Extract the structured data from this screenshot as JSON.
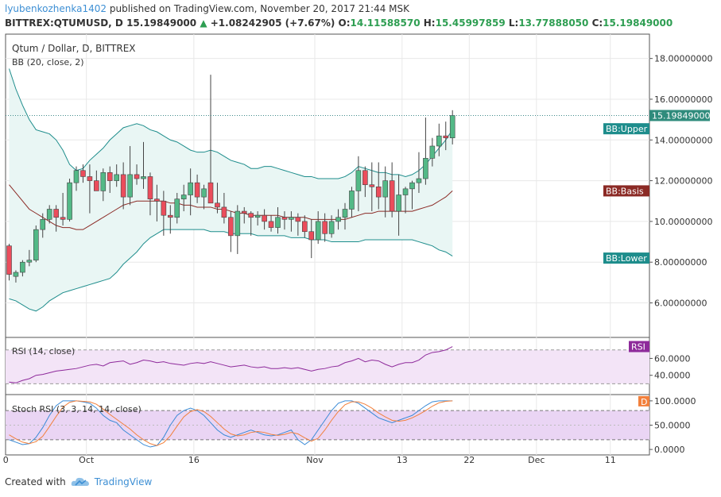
{
  "header": {
    "user": "lyubenkozhenka1402",
    "published": "published on TradingView.com, November 20, 2017 21:44 MSK",
    "symbol": "BITTREX:QTUMUSD, D",
    "last": "15.19849000",
    "change": "+1.08242905 (+7.67%)",
    "o_label": "O:",
    "o": "14.11588570",
    "h_label": "H:",
    "h": "15.45997859",
    "l_label": "L:",
    "l": "13.77888050",
    "c_label": "C:",
    "c": "15.19849000"
  },
  "chart_data": [
    {
      "type": "candlestick",
      "title": "Qtum / Dollar, D, BITTREX",
      "subtitle": "BB (20, close, 2)",
      "ylim": [
        4.5,
        19
      ],
      "yticks": [
        "6.00000000",
        "8.00000000",
        "10.00000000",
        "12.00000000",
        "14.00000000",
        "16.00000000",
        "18.00000000"
      ],
      "x_ticks": [
        "0",
        "Oct",
        "16",
        "Nov",
        "13",
        "22",
        "Dec",
        "11"
      ],
      "last_price_label": "15.19849000",
      "last_price": 15.2,
      "bb_labels": {
        "upper": "BB:Upper",
        "basis": "BB:Basis",
        "lower": "BB:Lower"
      },
      "colors": {
        "up": "#53b987",
        "down": "#eb4d5c",
        "upper": "#1e8d8c",
        "basis": "#8b2a25",
        "lower": "#1e8d8c",
        "fill": "#e9f6f4"
      },
      "candles": [
        [
          8.8,
          8.9,
          7.1,
          7.4
        ],
        [
          7.3,
          7.6,
          7.0,
          7.5
        ],
        [
          7.5,
          8.1,
          7.3,
          8.0
        ],
        [
          8.0,
          8.6,
          7.8,
          8.1
        ],
        [
          8.1,
          9.8,
          8.0,
          9.6
        ],
        [
          9.6,
          10.4,
          9.2,
          10.1
        ],
        [
          10.1,
          10.8,
          9.9,
          10.6
        ],
        [
          10.6,
          10.8,
          9.5,
          10.2
        ],
        [
          10.2,
          11.4,
          9.8,
          10.1
        ],
        [
          10.1,
          12.1,
          10.0,
          11.9
        ],
        [
          11.9,
          12.7,
          11.5,
          12.5
        ],
        [
          12.5,
          12.8,
          11.9,
          12.2
        ],
        [
          12.2,
          12.8,
          10.4,
          12.0
        ],
        [
          12.0,
          12.5,
          11.6,
          11.5
        ],
        [
          11.5,
          12.6,
          11.0,
          12.4
        ],
        [
          12.4,
          12.7,
          11.4,
          12.0
        ],
        [
          12.0,
          12.8,
          11.7,
          12.3
        ],
        [
          12.3,
          12.9,
          10.6,
          11.2
        ],
        [
          11.2,
          13.7,
          10.8,
          12.3
        ],
        [
          12.3,
          12.8,
          11.8,
          12.1
        ],
        [
          12.1,
          13.9,
          11.6,
          12.2
        ],
        [
          12.2,
          12.4,
          10.3,
          11.1
        ],
        [
          11.1,
          11.8,
          10.0,
          11.0
        ],
        [
          11.0,
          11.5,
          9.3,
          10.3
        ],
        [
          10.3,
          10.8,
          9.4,
          10.2
        ],
        [
          10.2,
          11.4,
          9.9,
          11.1
        ],
        [
          11.1,
          11.8,
          10.5,
          11.3
        ],
        [
          11.3,
          12.6,
          10.3,
          11.9
        ],
        [
          11.9,
          12.3,
          10.9,
          11.2
        ],
        [
          11.2,
          11.8,
          10.6,
          11.6
        ],
        [
          11.9,
          17.2,
          11.0,
          10.9
        ],
        [
          10.9,
          11.9,
          10.4,
          10.7
        ],
        [
          10.7,
          11.4,
          9.9,
          10.2
        ],
        [
          10.2,
          10.5,
          8.5,
          9.3
        ],
        [
          9.3,
          10.8,
          8.4,
          10.5
        ],
        [
          10.5,
          10.7,
          9.9,
          10.4
        ],
        [
          10.4,
          10.5,
          9.3,
          10.2
        ],
        [
          10.2,
          10.5,
          9.8,
          10.3
        ],
        [
          10.3,
          10.6,
          9.6,
          10.0
        ],
        [
          10.0,
          10.3,
          9.5,
          9.7
        ],
        [
          9.7,
          10.7,
          9.4,
          10.2
        ],
        [
          10.2,
          10.5,
          9.6,
          10.1
        ],
        [
          10.1,
          10.5,
          9.5,
          10.2
        ],
        [
          10.2,
          10.4,
          9.3,
          10.0
        ],
        [
          10.0,
          10.3,
          9.2,
          9.5
        ],
        [
          9.5,
          10.1,
          8.2,
          9.1
        ],
        [
          9.1,
          10.5,
          8.9,
          10.0
        ],
        [
          10.0,
          10.4,
          9.0,
          9.4
        ],
        [
          9.4,
          10.3,
          9.2,
          10.0
        ],
        [
          10.0,
          10.6,
          9.6,
          10.2
        ],
        [
          10.2,
          10.9,
          9.6,
          10.6
        ],
        [
          10.6,
          11.7,
          10.2,
          11.5
        ],
        [
          11.5,
          13.2,
          10.5,
          12.5
        ],
        [
          12.5,
          12.7,
          11.2,
          11.8
        ],
        [
          11.8,
          12.9,
          10.5,
          11.7
        ],
        [
          11.7,
          12.9,
          10.6,
          11.2
        ],
        [
          11.2,
          12.7,
          10.2,
          12.0
        ],
        [
          12.0,
          12.9,
          10.2,
          10.5
        ],
        [
          10.5,
          12.3,
          9.3,
          11.3
        ],
        [
          11.3,
          11.7,
          10.4,
          11.6
        ],
        [
          11.6,
          12.0,
          10.6,
          11.9
        ],
        [
          11.9,
          13.4,
          11.4,
          12.1
        ],
        [
          12.1,
          15.1,
          11.8,
          13.1
        ],
        [
          13.1,
          14.1,
          12.7,
          13.7
        ],
        [
          13.7,
          14.8,
          13.2,
          14.2
        ],
        [
          14.2,
          14.9,
          13.5,
          14.1
        ],
        [
          14.1,
          15.46,
          13.78,
          15.2
        ]
      ],
      "bb_upper": [
        17.5,
        16.5,
        15.7,
        15.0,
        14.5,
        14.4,
        14.3,
        14.0,
        13.5,
        12.8,
        12.5,
        12.6,
        13.0,
        13.3,
        13.6,
        14.0,
        14.3,
        14.6,
        14.7,
        14.8,
        14.7,
        14.5,
        14.4,
        14.2,
        14.0,
        13.9,
        13.7,
        13.5,
        13.4,
        13.4,
        13.5,
        13.4,
        13.2,
        13.0,
        12.9,
        12.8,
        12.6,
        12.6,
        12.7,
        12.7,
        12.6,
        12.5,
        12.4,
        12.3,
        12.2,
        12.2,
        12.1,
        12.1,
        12.1,
        12.1,
        12.2,
        12.4,
        12.7,
        12.6,
        12.5,
        12.4,
        12.4,
        12.3,
        12.3,
        12.2,
        12.3,
        12.5,
        12.8,
        13.2,
        13.6,
        14.0,
        14.5
      ],
      "bb_basis": [
        11.8,
        11.4,
        11.0,
        10.6,
        10.4,
        10.2,
        10.0,
        9.8,
        9.7,
        9.7,
        9.6,
        9.6,
        9.8,
        10.0,
        10.2,
        10.4,
        10.6,
        10.8,
        10.9,
        11.0,
        11.0,
        11.0,
        11.0,
        11.0,
        10.9,
        10.9,
        10.8,
        10.8,
        10.7,
        10.7,
        10.7,
        10.6,
        10.6,
        10.5,
        10.4,
        10.4,
        10.3,
        10.3,
        10.3,
        10.3,
        10.3,
        10.2,
        10.2,
        10.2,
        10.2,
        10.1,
        10.1,
        10.1,
        10.1,
        10.1,
        10.1,
        10.2,
        10.3,
        10.4,
        10.4,
        10.5,
        10.5,
        10.5,
        10.5,
        10.5,
        10.5,
        10.6,
        10.7,
        10.8,
        11.0,
        11.2,
        11.5
      ],
      "bb_lower": [
        6.2,
        6.1,
        5.9,
        5.7,
        5.6,
        5.8,
        6.1,
        6.3,
        6.5,
        6.6,
        6.7,
        6.8,
        6.9,
        7.0,
        7.1,
        7.2,
        7.5,
        7.9,
        8.2,
        8.5,
        8.9,
        9.2,
        9.4,
        9.6,
        9.6,
        9.6,
        9.6,
        9.6,
        9.6,
        9.6,
        9.5,
        9.5,
        9.5,
        9.4,
        9.4,
        9.4,
        9.4,
        9.3,
        9.3,
        9.3,
        9.3,
        9.3,
        9.2,
        9.2,
        9.2,
        9.1,
        9.1,
        9.1,
        9.0,
        9.0,
        9.0,
        9.0,
        9.0,
        9.1,
        9.1,
        9.1,
        9.1,
        9.1,
        9.1,
        9.1,
        9.1,
        9.0,
        8.9,
        8.8,
        8.6,
        8.5,
        8.3
      ]
    },
    {
      "type": "line",
      "title": "RSI (14, close)",
      "badge": "RSI",
      "ylim": [
        20,
        82
      ],
      "yticks": [
        "40.0000",
        "60.0000"
      ],
      "band": [
        30,
        70
      ],
      "color": "#8e2a9b",
      "values": [
        32,
        31,
        34,
        36,
        40,
        41,
        43,
        45,
        46,
        47,
        48,
        50,
        52,
        53,
        51,
        55,
        56,
        57,
        53,
        55,
        58,
        57,
        55,
        56,
        54,
        53,
        52,
        54,
        55,
        54,
        56,
        54,
        52,
        50,
        51,
        52,
        50,
        49,
        50,
        48,
        48,
        49,
        48,
        49,
        47,
        45,
        47,
        48,
        50,
        51,
        55,
        57,
        60,
        56,
        58,
        57,
        53,
        50,
        53,
        55,
        55,
        58,
        64,
        67,
        68,
        70,
        74
      ]
    },
    {
      "type": "line",
      "title": "Stoch RSI (3, 3, 14, 14, close)",
      "badge": "D",
      "ylim": [
        -8,
        108
      ],
      "yticks": [
        "0.0000",
        "50.0000",
        "100.0000"
      ],
      "band": [
        20,
        80
      ],
      "series": [
        {
          "name": "K",
          "color": "#3a8ad6",
          "values": [
            20,
            15,
            10,
            12,
            25,
            45,
            70,
            90,
            100,
            100,
            100,
            98,
            95,
            85,
            70,
            60,
            55,
            40,
            30,
            20,
            10,
            5,
            8,
            25,
            50,
            70,
            80,
            85,
            80,
            70,
            55,
            40,
            30,
            25,
            30,
            35,
            40,
            35,
            30,
            28,
            30,
            35,
            40,
            20,
            10,
            20,
            40,
            60,
            80,
            95,
            100,
            100,
            95,
            85,
            75,
            65,
            60,
            55,
            60,
            65,
            70,
            80,
            90,
            98,
            100,
            100,
            100
          ]
        },
        {
          "name": "D",
          "color": "#f2803c",
          "values": [
            30,
            22,
            15,
            12,
            16,
            27,
            47,
            68,
            87,
            97,
            100,
            99,
            98,
            93,
            83,
            72,
            62,
            52,
            42,
            30,
            20,
            12,
            8,
            14,
            28,
            48,
            67,
            78,
            82,
            78,
            68,
            55,
            42,
            32,
            28,
            30,
            35,
            37,
            35,
            31,
            29,
            31,
            35,
            32,
            24,
            17,
            23,
            40,
            60,
            78,
            92,
            98,
            98,
            93,
            85,
            75,
            67,
            60,
            58,
            60,
            65,
            72,
            80,
            89,
            96,
            99,
            100
          ]
        }
      ]
    }
  ],
  "footer": {
    "created": "Created with",
    "brand": "TradingView"
  }
}
